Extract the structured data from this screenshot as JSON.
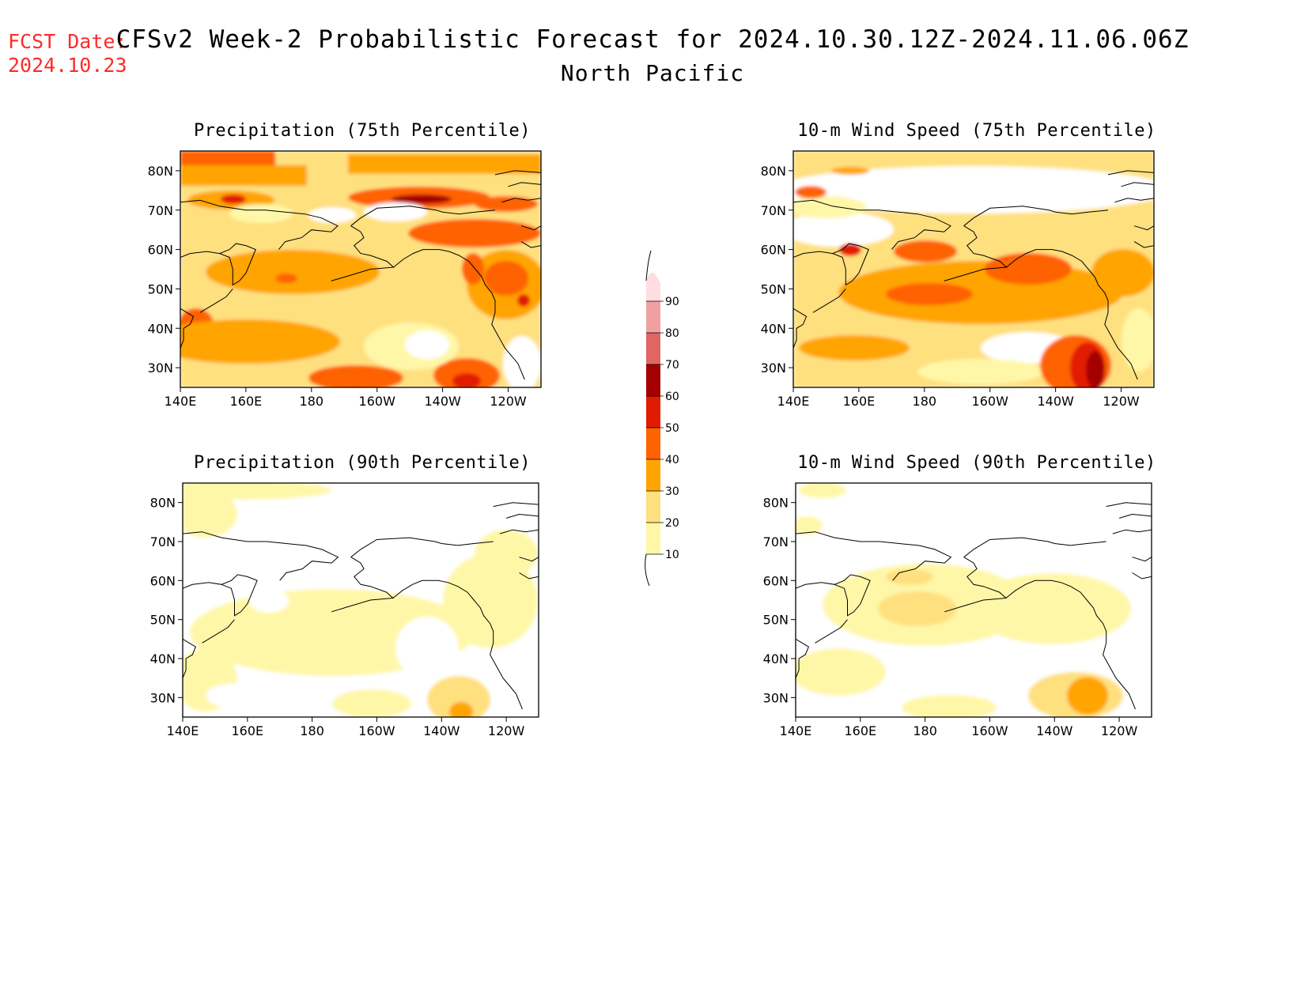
{
  "header": {
    "fcst_label": "FCST Date:",
    "fcst_date": "2024.10.23",
    "title": "CFSv2 Week-2 Probabilistic Forecast for 2024.10.30.12Z-2024.11.06.06Z",
    "subtitle": "North Pacific"
  },
  "axes": {
    "lat_labels": [
      "80N",
      "70N",
      "60N",
      "50N",
      "40N",
      "30N"
    ],
    "lat_values": [
      80,
      70,
      60,
      50,
      40,
      30
    ],
    "lon_labels": [
      "140E",
      "160E",
      "180",
      "160W",
      "140W",
      "120W"
    ],
    "lon_values": [
      140,
      160,
      180,
      200,
      220,
      240
    ],
    "lat_range": [
      25,
      85
    ],
    "lon_range": [
      140,
      250
    ]
  },
  "panels": [
    {
      "id": "precip75",
      "title": "Precipitation (75th Percentile)"
    },
    {
      "id": "wind75",
      "title": "10-m Wind Speed (75th Percentile)"
    },
    {
      "id": "precip90",
      "title": "Precipitation (90th Percentile)"
    },
    {
      "id": "wind90",
      "title": "10-m Wind Speed (90th Percentile)"
    }
  ],
  "colorbar": {
    "levels": [
      10,
      20,
      30,
      40,
      50,
      60,
      70,
      80,
      90
    ],
    "level_labels": [
      "10",
      "20",
      "30",
      "40",
      "50",
      "60",
      "70",
      "80",
      "90"
    ],
    "colors": [
      "#fff7a8",
      "#ffe07f",
      "#ffa400",
      "#ff6200",
      "#e11b00",
      "#a50000",
      "#e06565",
      "#f0a0a0",
      "#ffdde0"
    ]
  }
}
